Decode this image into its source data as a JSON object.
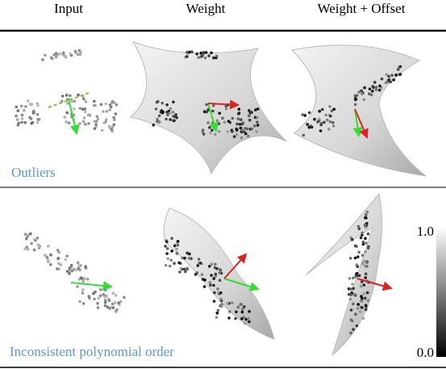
{
  "columns": [
    "Input",
    "Weight",
    "Weight + Offset"
  ],
  "rows": [
    {
      "label": "Outliers"
    },
    {
      "label": "Inconsistent polynomial order"
    }
  ],
  "colorbar": {
    "max": "1.0",
    "min": "0.0"
  }
}
